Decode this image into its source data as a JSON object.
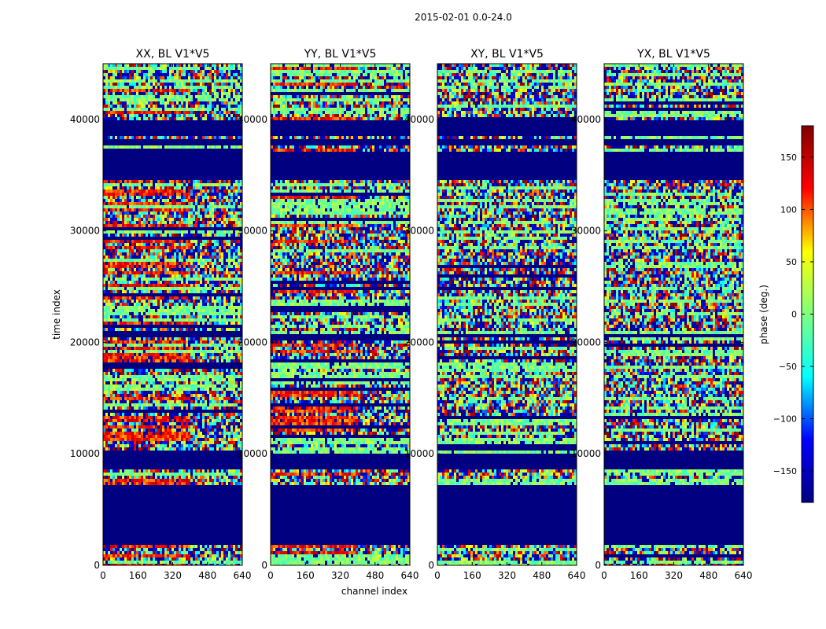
{
  "chart_data": {
    "type": "heatmap",
    "suptitle": "2015-02-01 0.0-24.0",
    "xlabel": "channel index",
    "ylabel": "time index",
    "xlim": [
      0,
      640
    ],
    "ylim": [
      0,
      45000
    ],
    "xticks": [
      0,
      160,
      320,
      480,
      640
    ],
    "yticks": [
      0,
      10000,
      20000,
      30000,
      40000
    ],
    "ytick_labels": [
      "0",
      "10000",
      "20000",
      "30000",
      "40000"
    ],
    "panels": [
      {
        "title": "XX, BL V1*V5",
        "variant": "parallel"
      },
      {
        "title": "YY, BL V1*V5",
        "variant": "parallel"
      },
      {
        "title": "XY, BL V1*V5",
        "variant": "cross"
      },
      {
        "title": "YX, BL V1*V5",
        "variant": "cross"
      }
    ],
    "flagged_time_ranges": [
      [
        1800,
        7200
      ],
      [
        8500,
        10000
      ],
      [
        20500,
        20800
      ],
      [
        34500,
        37000
      ],
      [
        37800,
        38200
      ],
      [
        38500,
        40000
      ]
    ],
    "band_edges": [
      43500,
      42000,
      40000,
      37000,
      34500,
      33000,
      30000,
      25000,
      24500,
      22000,
      21000,
      20000,
      18000,
      17000,
      15000,
      14000,
      13500,
      12500,
      11500,
      11000,
      10000,
      8500,
      7500,
      2000,
      1000
    ],
    "colorbar": {
      "label": "phase (deg.)",
      "range": [
        -180,
        180
      ],
      "ticks": [
        -150,
        -100,
        -50,
        0,
        50,
        100,
        150
      ],
      "tick_labels": [
        "−150",
        "−100",
        "−50",
        "0",
        "50",
        "100",
        "150"
      ],
      "colormap": [
        "#000080",
        "#0000ff",
        "#00ffff",
        "#7fff7f",
        "#ffff00",
        "#ff0000",
        "#800000"
      ]
    },
    "flag_color": "#000080"
  }
}
